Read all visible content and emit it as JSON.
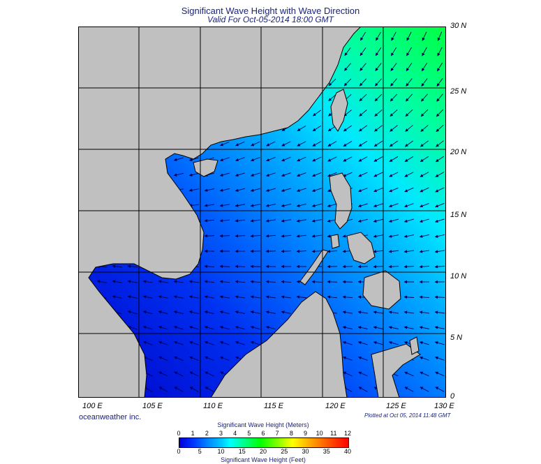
{
  "title": "Significant Wave Height with Wave Direction",
  "subtitle": "Valid For Oct-05-2014 18:00 GMT",
  "lat_labels": [
    "30 N",
    "25 N",
    "20 N",
    "15 N",
    "10 N",
    "5 N",
    "0"
  ],
  "lon_labels": [
    "100 E",
    "105 E",
    "110 E",
    "115 E",
    "120 E",
    "125 E",
    "130 E"
  ],
  "credit": "oceanweather inc.",
  "plotted": "Plotted at Oct 05, 2014 11:48 GMT",
  "legend": {
    "meters_title": "Significant Wave Height (Meters)",
    "feet_title": "Significant Wave Height (Feet)",
    "meters_ticks": [
      "0",
      "1",
      "2",
      "3",
      "4",
      "5",
      "6",
      "7",
      "8",
      "9",
      "10",
      "11",
      "12"
    ],
    "feet_ticks": [
      "0",
      "5",
      "10",
      "15",
      "20",
      "25",
      "30",
      "35",
      "40"
    ]
  },
  "colors": {
    "land": "#c0c0c0",
    "low": "#0000d8",
    "mid": "#00ffff",
    "high": "#00ff00",
    "title": "#1a237e"
  }
}
